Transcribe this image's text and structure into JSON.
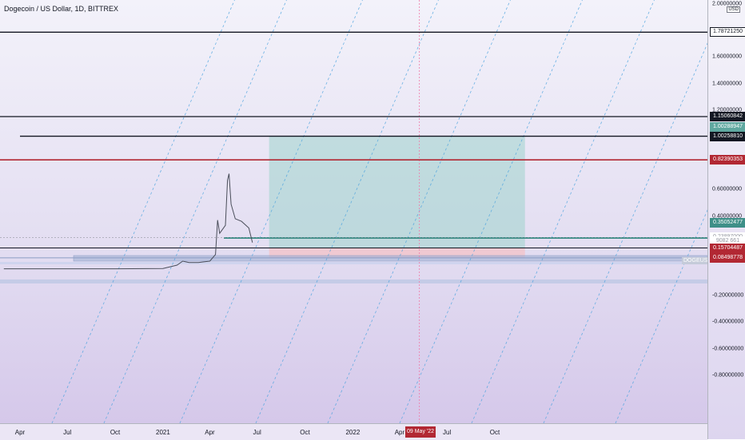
{
  "title": "Dogecoin / US Dollar, 1D, BITTREX",
  "price_axis": {
    "currency": "USD",
    "ticks": [
      {
        "label": "2.00000000",
        "value": 2.0
      },
      {
        "label": "1.60000000",
        "value": 1.6
      },
      {
        "label": "1.40000000",
        "value": 1.4
      },
      {
        "label": "1.20000000",
        "value": 1.2
      },
      {
        "label": "0.60000000",
        "value": 0.6
      },
      {
        "label": "0.40000000",
        "value": 0.4
      },
      {
        "label": "-0.20000000",
        "value": -0.2
      },
      {
        "label": "-0.40000000",
        "value": -0.4
      },
      {
        "label": "-0.60000000",
        "value": -0.6
      },
      {
        "label": "-0.80000000",
        "value": -0.8
      }
    ],
    "labels": [
      {
        "text": "1.78721250",
        "value": 1.7872125,
        "bg": "#ffffff",
        "fg": "#131722",
        "border": "#131722"
      },
      {
        "text": "1.15060842",
        "value": 1.15060842,
        "bg": "#131722",
        "fg": "#ffffff",
        "border": "#131722"
      },
      {
        "text": "1.00288947",
        "value": 1.07,
        "bg": "#5fa8a0",
        "fg": "#ffffff",
        "border": "#5fa8a0"
      },
      {
        "text": "1.00258810",
        "value": 1.0025881,
        "bg": "#131722",
        "fg": "#ffffff",
        "border": "#131722"
      },
      {
        "text": "0.82390353",
        "value": 0.82390353,
        "bg": "#b22833",
        "fg": "#ffffff",
        "border": "#b22833"
      },
      {
        "text": "0.35052477",
        "value": 0.35052477,
        "bg": "#3e8f88",
        "fg": "#ffffff",
        "border": "#3e8f88"
      },
      {
        "text": "0.23897000",
        "value": 0.23897,
        "bg": "#ffffff",
        "fg": "#9598a1",
        "border": "#ffffff"
      },
      {
        "text": "9082 661",
        "value": 0.21,
        "bg": "#ffffff",
        "fg": "#9598a1",
        "border": "#ffffff"
      },
      {
        "text": "0.15931065",
        "value": 0.15931065,
        "bg": "#131722",
        "fg": "#ffffff",
        "border": "#131722"
      },
      {
        "text": "0.15704487",
        "value": 0.15704487,
        "bg": "#b22833",
        "fg": "#ffffff",
        "border": "#b22833"
      },
      {
        "text": "0.08498778",
        "value": 0.08498778,
        "bg": "#b22833",
        "fg": "#ffffff",
        "border": "#b22833"
      }
    ],
    "symbol_tag": "DOGEUSD"
  },
  "time_axis": {
    "ticks": [
      {
        "label": "Apr",
        "date": "2020-04-01"
      },
      {
        "label": "Jul",
        "date": "2020-07-01"
      },
      {
        "label": "Oct",
        "date": "2020-10-01"
      },
      {
        "label": "2021",
        "date": "2021-01-01"
      },
      {
        "label": "Apr",
        "date": "2021-04-01"
      },
      {
        "label": "Jul",
        "date": "2021-07-01"
      },
      {
        "label": "Oct",
        "date": "2021-10-01"
      },
      {
        "label": "2022",
        "date": "2022-01-01"
      },
      {
        "label": "Apr",
        "date": "2022-04-01"
      },
      {
        "label": "Jul",
        "date": "2022-07-01"
      },
      {
        "label": "Oct",
        "date": "2022-10-01"
      }
    ],
    "crosshair_label": "09 May '22"
  },
  "colors": {
    "profit_zone": "#9fd3cc",
    "loss_zone": "#f3c4cb",
    "level_black": "#131722",
    "level_red": "#b22833",
    "level_teal": "#3e8f88",
    "fib_channel": "#4aa3df",
    "crosshair": "#ef7aa8",
    "price_line": "#4a4e5a"
  },
  "chart_data": {
    "type": "line",
    "series": [
      {
        "x": [
          "2020-03-01",
          "2020-06-01",
          "2020-10-01",
          "2021-01-01",
          "2021-01-28",
          "2021-02-08",
          "2021-02-20",
          "2021-03-10",
          "2021-04-01",
          "2021-04-12",
          "2021-04-16",
          "2021-04-20",
          "2021-05-01",
          "2021-05-05",
          "2021-05-08",
          "2021-05-12",
          "2021-05-20",
          "2021-06-01",
          "2021-06-15",
          "2021-06-22"
        ],
        "y": [
          0.0025,
          0.0026,
          0.0026,
          0.0048,
          0.03,
          0.06,
          0.05,
          0.05,
          0.06,
          0.11,
          0.37,
          0.27,
          0.33,
          0.67,
          0.72,
          0.49,
          0.38,
          0.36,
          0.31,
          0.2
        ]
      }
    ],
    "ylim": [
      -0.85,
      2.02
    ],
    "log_scale": false,
    "horizontal_levels": [
      1.7872125,
      1.15060842,
      1.0025881,
      0.82390353,
      0.35052477,
      0.23897,
      0.15931065,
      0.15704487,
      0.08498778
    ],
    "position_tool": {
      "entry": 0.15931065,
      "target": 1.0025881,
      "stop": 0.08498778,
      "start": "2021-07-24",
      "end": "2022-11-28"
    },
    "crosshair_date": "2022-05-09",
    "grid": false
  }
}
